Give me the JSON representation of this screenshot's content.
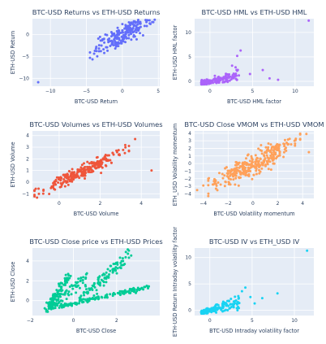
{
  "chart_data": [
    {
      "type": "scatter",
      "title": "BTC-USD Returns vs ETH-USD Returns",
      "xlabel": "BTC-USD Return",
      "ylabel": "ETH-USD Return",
      "xlim": [
        -12.5,
        5.2
      ],
      "ylim": [
        -11.8,
        3.6
      ],
      "xticks": [
        -10,
        -5,
        0,
        5
      ],
      "yticks": [
        -10,
        -5,
        0
      ],
      "color": "#636efa",
      "cloud": {
        "x_range": [
          -4.5,
          4.5
        ],
        "slope": 0.95,
        "noise": 1.2,
        "count": 220
      },
      "outliers": [
        [
          -11.7,
          -10.9
        ],
        [
          4.3,
          2.8
        ],
        [
          3.9,
          2.4
        ]
      ],
      "grid": true
    },
    {
      "type": "scatter",
      "title": "BTC-USD HML vs ETH-USD HML",
      "xlabel": "BTC-USD HML factor",
      "ylabel": "ETH-USD HML factor",
      "xlim": [
        -1.8,
        12.2
      ],
      "ylim": [
        -1.0,
        12.8
      ],
      "xticks": [
        0,
        5,
        10
      ],
      "yticks": [
        0,
        5,
        10
      ],
      "color": "#ab63fa",
      "cloud": {
        "x_range": [
          -1.0,
          3.5
        ],
        "slope": 0.35,
        "noise": 0.6,
        "count": 210
      },
      "outliers": [
        [
          11.6,
          12.4
        ],
        [
          6.2,
          2.3
        ],
        [
          3.2,
          5.2
        ],
        [
          4.7,
          1.5
        ],
        [
          7.0,
          0.6
        ],
        [
          8.0,
          0.3
        ],
        [
          3.6,
          6.3
        ],
        [
          2.6,
          3.2
        ]
      ],
      "grid": true
    },
    {
      "type": "scatter",
      "title": "BTC-USD Volumes vs ETH-USD Volumes",
      "xlabel": "BTC-USD Volume",
      "ylabel": "ETH-USD Volume",
      "xlim": [
        -1.3,
        4.9
      ],
      "ylim": [
        -1.4,
        4.4
      ],
      "xticks": [
        0,
        2,
        4
      ],
      "yticks": [
        -1,
        0,
        1,
        2,
        3,
        4
      ],
      "color": "#ef553b",
      "cloud": {
        "x_range": [
          -1.2,
          3.4
        ],
        "slope": 0.85,
        "noise": 0.28,
        "count": 260
      },
      "outliers": [
        [
          4.5,
          1.0
        ],
        [
          3.7,
          3.7
        ],
        [
          3.2,
          2.5
        ]
      ],
      "grid": true
    },
    {
      "type": "scatter",
      "title": "BTC-USD Close VMOM vs ETH-USD VMOM",
      "xlabel": "BTC-USD Volatility momentum",
      "ylabel": "ETH_USD Volatility momentum",
      "xlim": [
        -4.7,
        4.9
      ],
      "ylim": [
        -4.6,
        4.3
      ],
      "xticks": [
        -4,
        -2,
        0,
        2,
        4
      ],
      "yticks": [
        -4,
        -3,
        -2,
        -1,
        0,
        1,
        2,
        3,
        4
      ],
      "color": "#ffa15a",
      "cloud": {
        "x_range": [
          -3.6,
          3.8
        ],
        "slope": 0.8,
        "noise": 0.75,
        "count": 320
      },
      "outliers": [
        [
          -4.5,
          -3.5
        ],
        [
          -4.0,
          -2.9
        ],
        [
          4.3,
          3.9
        ],
        [
          4.5,
          1.5
        ]
      ],
      "grid": true
    },
    {
      "type": "scatter",
      "title": "BTC-USD Close price vs ETH-USD Prices",
      "xlabel": "BTC-USD Close",
      "ylabel": "ETH-USD Close",
      "xlim": [
        -1.9,
        4.0
      ],
      "ylim": [
        -1.5,
        5.3
      ],
      "xticks": [
        -2,
        0,
        2
      ],
      "yticks": [
        0,
        2,
        4
      ],
      "color": "#00cc96",
      "branches": [
        {
          "x_start": -1.1,
          "x_end": 3.5,
          "y_start": -0.8,
          "y_end": 1.4,
          "noise": 0.12,
          "count": 160
        },
        {
          "x_start": -1.3,
          "x_end": -0.2,
          "y_start": -1.1,
          "y_end": 2.6,
          "noise": 0.22,
          "count": 90
        },
        {
          "x_start": -1.2,
          "x_end": 0.6,
          "y_start": -0.7,
          "y_end": 2.4,
          "noise": 0.3,
          "count": 70
        },
        {
          "x_start": 0.3,
          "x_end": 1.0,
          "y_start": 0.2,
          "y_end": 1.8,
          "noise": 0.25,
          "count": 30
        },
        {
          "x_start": 1.0,
          "x_end": 2.6,
          "y_start": 1.6,
          "y_end": 4.6,
          "noise": 0.35,
          "count": 70
        }
      ],
      "grid": true
    },
    {
      "type": "scatter",
      "title": "BTC-USD IV vs ETH_USD IV",
      "xlabel": "BTC-USD Intraday volatility factor",
      "ylabel": "ETH-USD Return Intraday volatility factor",
      "xlim": [
        -1.8,
        12.3
      ],
      "ylim": [
        -1.0,
        11.8
      ],
      "xticks": [
        0,
        5,
        10
      ],
      "yticks": [
        0,
        5,
        10
      ],
      "color": "#19d3f3",
      "cloud": {
        "x_range": [
          -1.0,
          3.5
        ],
        "slope": 0.45,
        "noise": 0.55,
        "count": 220
      },
      "outliers": [
        [
          11.5,
          11.3
        ],
        [
          8.0,
          3.2
        ],
        [
          6.2,
          2.3
        ],
        [
          4.8,
          2.5
        ],
        [
          3.8,
          3.6
        ],
        [
          4.2,
          4.3
        ],
        [
          5.3,
          1.3
        ],
        [
          3.4,
          2.2
        ]
      ],
      "grid": true
    }
  ]
}
